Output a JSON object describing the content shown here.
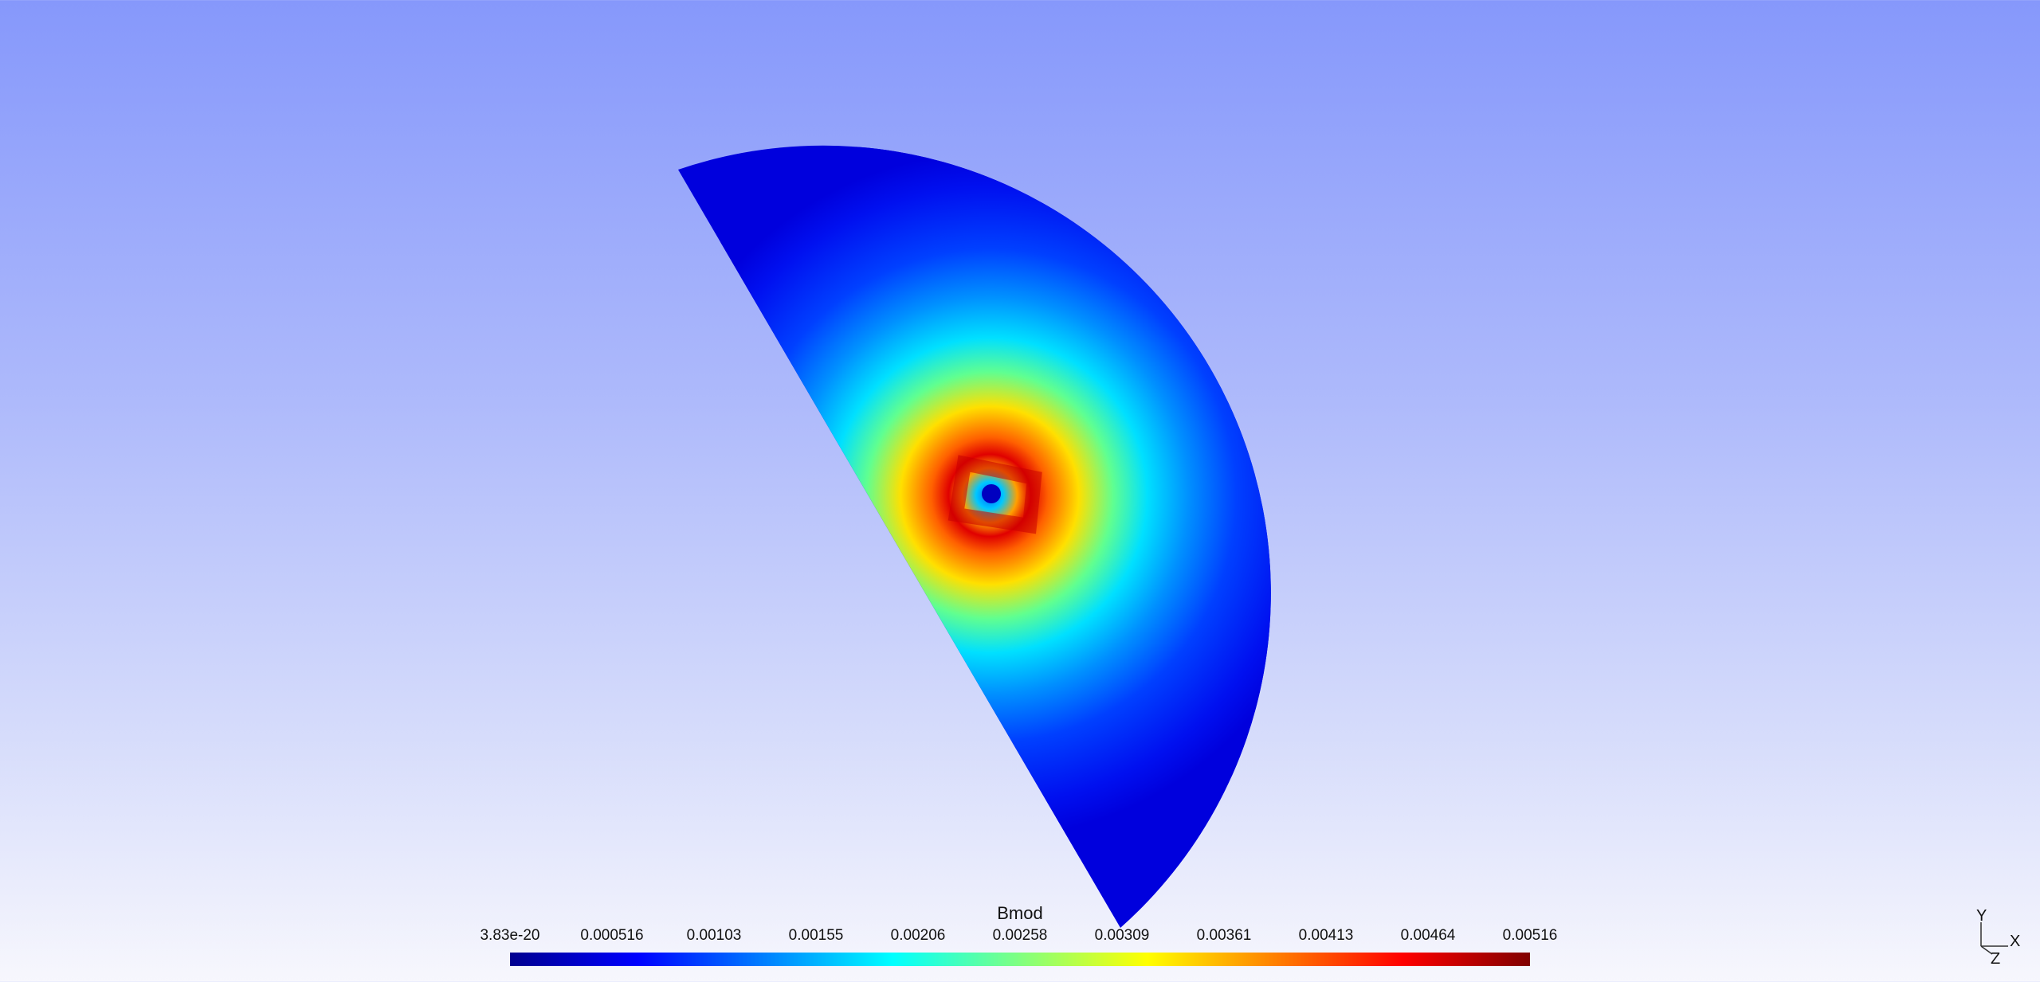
{
  "scalar_bar": {
    "title": "Bmod",
    "labels": [
      "3.83e-20",
      "0.000516",
      "0.00103",
      "0.00155",
      "0.00206",
      "0.00258",
      "0.00309",
      "0.00361",
      "0.00413",
      "0.00464",
      "0.00516"
    ],
    "colormap": [
      "#00008f",
      "#0000ff",
      "#0080ff",
      "#00ffff",
      "#80ff80",
      "#ffff00",
      "#ff8000",
      "#ff0000",
      "#800000"
    ]
  },
  "axes": {
    "x": "X",
    "y": "Y",
    "z": "Z"
  },
  "colors": {
    "background_top": "#8698fb",
    "background_bottom": "#f7f7fd",
    "field_low": "#0000ff",
    "field_high": "#800000"
  }
}
